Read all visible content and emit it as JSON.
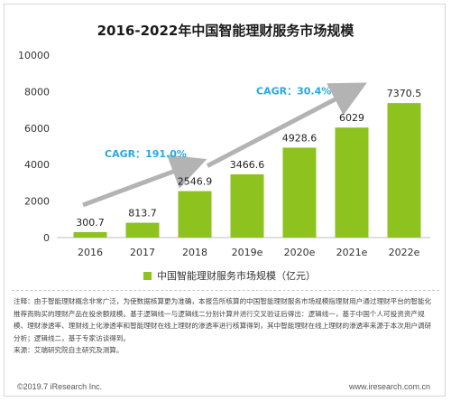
{
  "title": "2016-2022年中国智能理财服务市场规模",
  "chart_data": {
    "type": "bar",
    "categories": [
      "2016",
      "2017",
      "2018",
      "2019e",
      "2020e",
      "2021e",
      "2022e"
    ],
    "series": [
      {
        "name": "中国智能理财服务市场规模（亿元）",
        "values": [
          300.7,
          813.7,
          2546.9,
          3466.6,
          4928.6,
          6029,
          7370.5
        ]
      }
    ],
    "value_labels": [
      "300.7",
      "813.7",
      "2546.9",
      "3466.6",
      "4928.6",
      "6029",
      "7370.5"
    ],
    "ylim": [
      0,
      10000
    ],
    "yticks": [
      0,
      2000,
      4000,
      6000,
      8000,
      10000
    ],
    "legend_position": "bottom",
    "bar_color": "#8dc21f",
    "annotations": [
      {
        "text": "CAGR：191.0%",
        "color": "#29a8e0"
      },
      {
        "text": "CAGR：30.4%",
        "color": "#29a8e0"
      }
    ]
  },
  "legend": {
    "label": "中国智能理财服务市场规模（亿元）"
  },
  "note": [
    "注释：由于智能理财概念非常广泛，为使数据核算更为准确，本报告所核算的中国智能理财服务市场规模指理财用户通过理财平台的智能化推荐而购买的理财产品在投余额规模。基于逻辑线一与逻辑线二分别计算并进行交叉验证后得出：逻辑线一，基于中国个人可投资资产规模、理财渗透率、理财线上化渗透率和智能理财在线上理财的渗透率进行核算得到，其中智能理财在线上理财的渗透率来源于本次用户调研分析；逻辑线二，基于专家访谈得到。",
    "来源：艾瑞研究院自主研究及测算。"
  ],
  "footer": {
    "left": "©2019.7 iResearch Inc.",
    "right": "www.iresearch.com.cn"
  }
}
